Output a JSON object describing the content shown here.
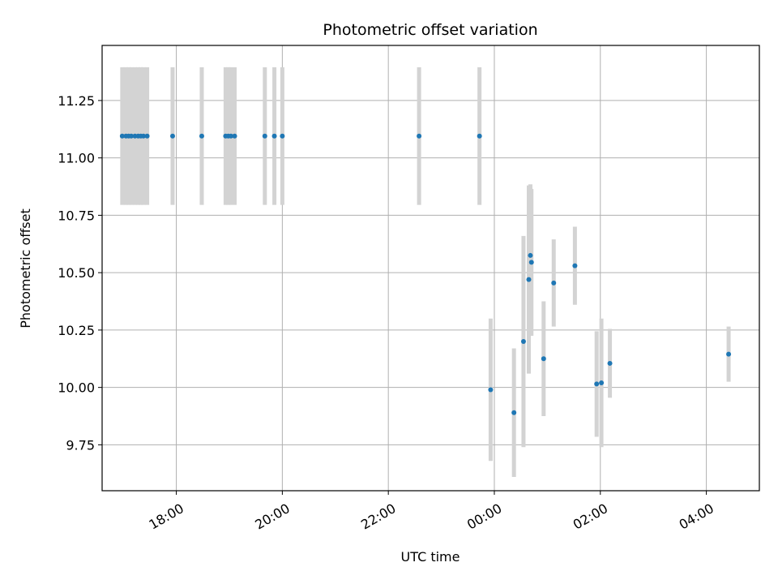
{
  "chart_data": {
    "type": "scatter",
    "title": "Photometric offset variation",
    "xlabel": "UTC time",
    "ylabel": "Photometric offset",
    "x_unit": "hours",
    "xlim": [
      16.6,
      29.0
    ],
    "ylim": [
      9.55,
      11.49
    ],
    "x_ticks": [
      {
        "value": 18,
        "label": "18:00"
      },
      {
        "value": 20,
        "label": "20:00"
      },
      {
        "value": 22,
        "label": "22:00"
      },
      {
        "value": 24,
        "label": "00:00"
      },
      {
        "value": 26,
        "label": "02:00"
      },
      {
        "value": 28,
        "label": "04:00"
      }
    ],
    "y_ticks": [
      {
        "value": 9.75,
        "label": "9.75"
      },
      {
        "value": 10.0,
        "label": "10.00"
      },
      {
        "value": 10.25,
        "label": "10.25"
      },
      {
        "value": 10.5,
        "label": "10.50"
      },
      {
        "value": 10.75,
        "label": "10.75"
      },
      {
        "value": 11.0,
        "label": "11.00"
      },
      {
        "value": 11.25,
        "label": "11.25"
      }
    ],
    "grid": true,
    "marker_color": "#1f77b4",
    "errorbar_color": "#d3d3d3",
    "points": [
      {
        "x": 16.98,
        "y": 11.095,
        "err": 0.3
      },
      {
        "x": 17.05,
        "y": 11.095,
        "err": 0.3
      },
      {
        "x": 17.1,
        "y": 11.095,
        "err": 0.3
      },
      {
        "x": 17.15,
        "y": 11.095,
        "err": 0.3
      },
      {
        "x": 17.22,
        "y": 11.095,
        "err": 0.3
      },
      {
        "x": 17.28,
        "y": 11.095,
        "err": 0.3
      },
      {
        "x": 17.33,
        "y": 11.095,
        "err": 0.3
      },
      {
        "x": 17.38,
        "y": 11.095,
        "err": 0.3
      },
      {
        "x": 17.45,
        "y": 11.095,
        "err": 0.3
      },
      {
        "x": 17.93,
        "y": 11.095,
        "err": 0.3
      },
      {
        "x": 18.48,
        "y": 11.095,
        "err": 0.3
      },
      {
        "x": 18.93,
        "y": 11.095,
        "err": 0.3
      },
      {
        "x": 18.98,
        "y": 11.095,
        "err": 0.3
      },
      {
        "x": 19.03,
        "y": 11.095,
        "err": 0.3
      },
      {
        "x": 19.1,
        "y": 11.095,
        "err": 0.3
      },
      {
        "x": 19.67,
        "y": 11.095,
        "err": 0.3
      },
      {
        "x": 19.85,
        "y": 11.095,
        "err": 0.3
      },
      {
        "x": 20.0,
        "y": 11.095,
        "err": 0.3
      },
      {
        "x": 22.58,
        "y": 11.095,
        "err": 0.3
      },
      {
        "x": 23.72,
        "y": 11.095,
        "err": 0.3
      },
      {
        "x": 23.93,
        "y": 9.99,
        "err": 0.31
      },
      {
        "x": 24.37,
        "y": 9.89,
        "err": 0.28
      },
      {
        "x": 24.55,
        "y": 10.2,
        "err": 0.46
      },
      {
        "x": 24.65,
        "y": 10.47,
        "err": 0.41
      },
      {
        "x": 24.68,
        "y": 10.575,
        "err": 0.31
      },
      {
        "x": 24.7,
        "y": 10.545,
        "err": 0.32
      },
      {
        "x": 24.93,
        "y": 10.125,
        "err": 0.25
      },
      {
        "x": 25.12,
        "y": 10.455,
        "err": 0.19
      },
      {
        "x": 25.52,
        "y": 10.53,
        "err": 0.17
      },
      {
        "x": 25.93,
        "y": 10.015,
        "err": 0.23
      },
      {
        "x": 26.02,
        "y": 10.02,
        "err": 0.28
      },
      {
        "x": 26.18,
        "y": 10.105,
        "err": 0.15
      },
      {
        "x": 28.42,
        "y": 10.145,
        "err": 0.12
      }
    ]
  }
}
